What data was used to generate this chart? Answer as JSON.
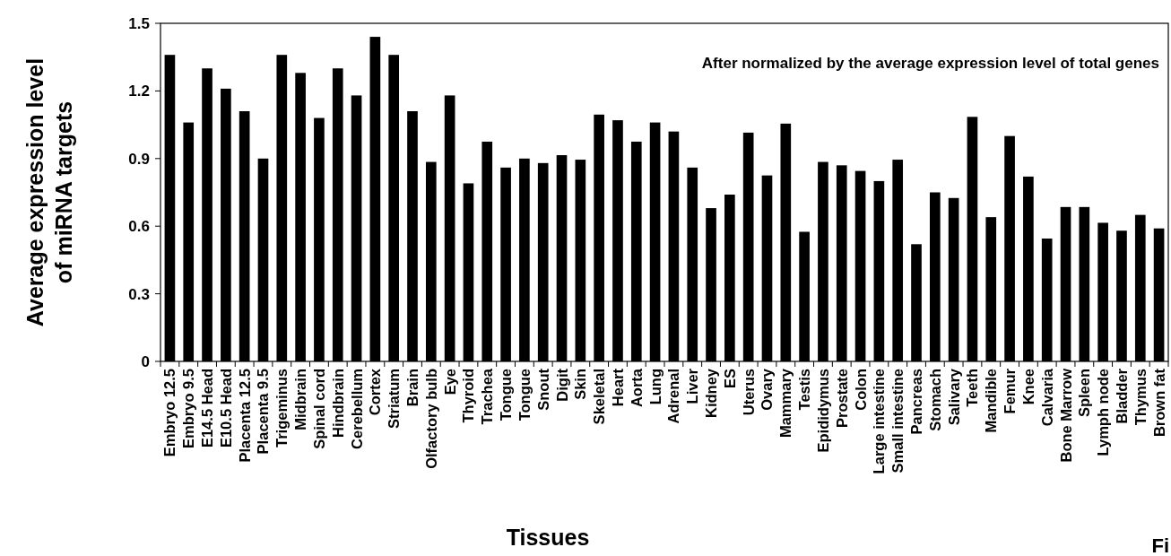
{
  "chart_data": {
    "type": "bar",
    "xlabel": "Tissues",
    "ylabel": "Average expression level of miRNA targets",
    "categories": [
      "Embryo 12.5",
      "Embryo 9.5",
      "E14.5 Head",
      "E10.5 Head",
      "Placenta 12.5",
      "Placenta 9.5",
      "Trigeminus",
      "Midbrain",
      "Spinal cord",
      "Hindbrain",
      "Cerebellum",
      "Cortex",
      "Striatum",
      "Brain",
      "Olfactory bulb",
      "Eye",
      "Thyroid",
      "Trachea",
      "Tongue",
      "Tongue",
      "Snout",
      "Digit",
      "Skin",
      "Skeletal",
      "Heart",
      "Aorta",
      "Lung",
      "Adrenal",
      "Liver",
      "Kidney",
      "ES",
      "Uterus",
      "Ovary",
      "Mammary",
      "Testis",
      "Epididymus",
      "Prostate",
      "Colon",
      "Large intestine",
      "Small intestine",
      "Pancreas",
      "Stomach",
      "Salivary",
      "Teeth",
      "Mandible",
      "Femur",
      "Knee",
      "Calvaria",
      "Bone Marrow",
      "Spleen",
      "Lymph node",
      "Bladder",
      "Thymus",
      "Brown fat"
    ],
    "values": [
      1.36,
      1.06,
      1.3,
      1.21,
      1.11,
      0.9,
      1.36,
      1.28,
      1.08,
      1.3,
      1.18,
      1.44,
      1.36,
      1.11,
      0.885,
      1.18,
      0.79,
      0.975,
      0.86,
      0.9,
      0.88,
      0.915,
      0.895,
      1.095,
      1.07,
      0.975,
      1.06,
      1.02,
      0.86,
      0.68,
      0.74,
      1.015,
      0.825,
      1.055,
      0.575,
      0.885,
      0.87,
      0.845,
      0.8,
      0.895,
      0.52,
      0.75,
      0.725,
      1.085,
      0.64,
      1.0,
      0.82,
      0.545,
      0.685,
      0.685,
      0.615,
      0.58,
      0.65,
      0.59
    ],
    "color": "#000000",
    "ylim": [
      0,
      1.5
    ],
    "yticks": [
      0,
      0.3,
      0.6,
      0.9,
      1.2,
      1.5
    ],
    "grid": false,
    "annotations": [
      "After normalized by the average expression level of total genes",
      "Fi"
    ]
  }
}
